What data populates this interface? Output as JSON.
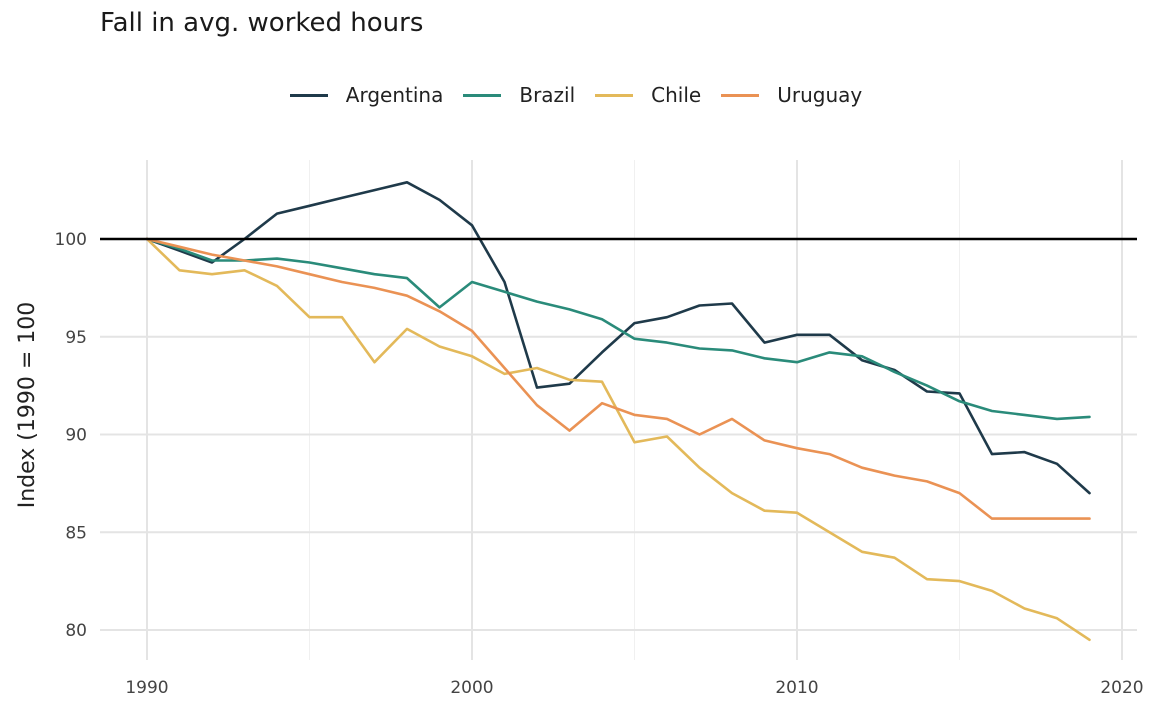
{
  "chart_data": {
    "type": "line",
    "title": "Fall in avg. worked hours",
    "xlabel": "",
    "ylabel": "Index (1990 = 100",
    "xlim": [
      1990,
      2020
    ],
    "ylim": [
      79,
      104
    ],
    "x_ticks": [
      1990,
      2000,
      2010,
      2020
    ],
    "y_ticks": [
      80,
      85,
      90,
      95,
      100
    ],
    "reference_line": 100,
    "grid": true,
    "legend_position": "top",
    "x": [
      1990,
      1991,
      1992,
      1993,
      1994,
      1995,
      1996,
      1997,
      1998,
      1999,
      2000,
      2001,
      2002,
      2003,
      2004,
      2005,
      2006,
      2007,
      2008,
      2009,
      2010,
      2011,
      2012,
      2013,
      2014,
      2015,
      2016,
      2017,
      2018,
      2019
    ],
    "series": [
      {
        "name": "Argentina",
        "color": "#1f3a4a",
        "values": [
          100,
          99.4,
          98.8,
          100.0,
          101.3,
          101.7,
          102.1,
          102.5,
          102.9,
          102.0,
          100.7,
          97.8,
          92.4,
          92.6,
          94.2,
          95.7,
          96.0,
          96.6,
          96.7,
          94.7,
          95.1,
          95.1,
          93.8,
          93.3,
          92.2,
          92.1,
          89.0,
          89.1,
          88.5,
          87.0
        ]
      },
      {
        "name": "Brazil",
        "color": "#2a8b7a",
        "values": [
          100,
          99.5,
          98.9,
          98.9,
          99.0,
          98.8,
          98.5,
          98.2,
          98.0,
          96.5,
          97.8,
          97.3,
          96.8,
          96.4,
          95.9,
          94.9,
          94.7,
          94.4,
          94.3,
          93.9,
          93.7,
          94.2,
          94.0,
          93.2,
          92.5,
          91.7,
          91.2,
          91.0,
          90.8,
          90.9
        ]
      },
      {
        "name": "Chile",
        "color": "#e3b95a",
        "values": [
          100,
          98.4,
          98.2,
          98.4,
          97.6,
          96.0,
          96.0,
          93.7,
          95.4,
          94.5,
          94.0,
          93.1,
          93.4,
          92.8,
          92.7,
          89.6,
          89.9,
          88.3,
          87.0,
          86.1,
          86.0,
          85.0,
          84.0,
          83.7,
          82.6,
          82.5,
          82.0,
          81.1,
          80.6,
          79.5
        ]
      },
      {
        "name": "Uruguay",
        "color": "#ea9254",
        "values": [
          100,
          99.6,
          99.2,
          98.9,
          98.6,
          98.2,
          97.8,
          97.5,
          97.1,
          96.3,
          95.3,
          93.4,
          91.5,
          90.2,
          91.6,
          91.0,
          90.8,
          90.0,
          90.8,
          89.7,
          89.3,
          89.0,
          88.3,
          87.9,
          87.6,
          87.0,
          85.7,
          85.7,
          85.7,
          85.7
        ]
      }
    ]
  }
}
